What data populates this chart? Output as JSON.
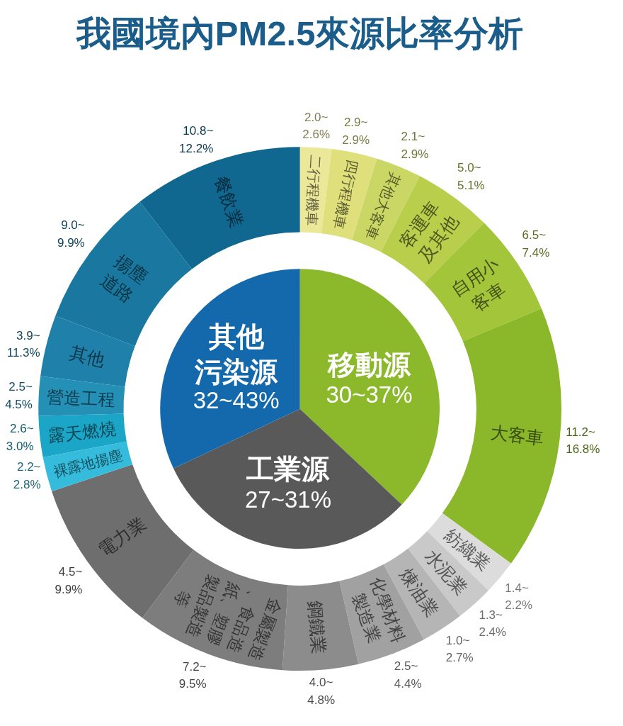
{
  "chart_data": [
    {
      "type": "pie",
      "title": "我國境內PM2.5來源比率分析",
      "categories": [
        "移動源",
        "工業源",
        "其他污染源"
      ],
      "values": [
        37,
        31,
        32
      ],
      "colors": [
        "#8cb92b",
        "#595959",
        "#1469ad"
      ],
      "value_labels": [
        "30~37%",
        "27~31%",
        "32~43%"
      ]
    },
    {
      "type": "donut",
      "categories": [
        "二行程機車",
        "四行程機車",
        "其他大客車",
        "客運車及其他",
        "自用小客車",
        "大客車",
        "紡織業",
        "水泥業",
        "煉油業",
        "化學材料製造業",
        "鋼鐵業",
        "金屬製造、食品造紙、塑膠製品製造等",
        "電力業",
        "裸露地揚塵",
        "露天燃燒",
        "營造工程",
        "其他",
        "揚塵道路",
        "餐飲業"
      ],
      "values": [
        2.0,
        2.9,
        2.9,
        5.0,
        6.5,
        16.8,
        2.2,
        2.4,
        2.7,
        4.4,
        4.8,
        9.5,
        9.9,
        2.2,
        2.6,
        2.5,
        3.9,
        9.0,
        10.8
      ],
      "colors": [
        "#ebe89a",
        "#dfe07c",
        "#cbd764",
        "#b9cf4c",
        "#a3c53a",
        "#8ab82a",
        "#dcdcdc",
        "#c9c9c9",
        "#b5b5b5",
        "#a1a1a1",
        "#8c8c8c",
        "#7d7d7d",
        "#6e6e6e",
        "#35bcdd",
        "#1ba6c8",
        "#2490b6",
        "#1f80aa",
        "#1a78a0",
        "#10678f"
      ],
      "value_labels": [
        "2.0~2.6%",
        "2.9~2.9%",
        "2.1~2.9%",
        "5.0~5.1%",
        "6.5~7.4%",
        "11.2~16.8%",
        "1.4~2.2%",
        "1.3~2.4%",
        "1.0~2.7%",
        "2.5~4.4%",
        "4.0~4.8%",
        "7.2~9.5%",
        "4.5~9.9%",
        "2.2~2.8%",
        "2.6~3.0%",
        "2.5~4.5%",
        "3.9~11.3%",
        "9.0~9.9%",
        "10.8~12.2%"
      ]
    }
  ]
}
